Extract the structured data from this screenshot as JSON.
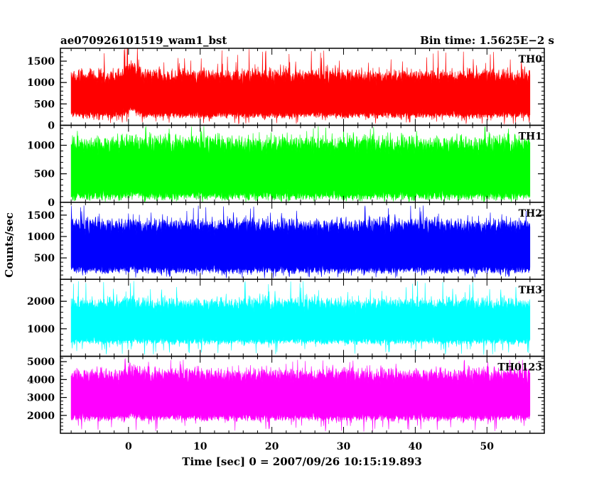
{
  "chart_data": {
    "type": "line",
    "title_left": "ae070926101519_wam1_bst",
    "title_right": "Bin time: 1.5625E−2 s",
    "xlabel": "Time [sec] 0 = 2007/09/26 10:15:19.893",
    "ylabel": "Counts/sec",
    "xlim": [
      -9.5,
      58
    ],
    "x_range": [
      -8,
      56
    ],
    "x_ticks": [
      0,
      10,
      20,
      30,
      40,
      50
    ],
    "x_tick_labels": [
      "0",
      "10",
      "20",
      "30",
      "40",
      "50"
    ],
    "panels": [
      {
        "name": "TH0",
        "color": "#ff0000",
        "ylim": [
          0,
          1800
        ],
        "y_ticks": [
          0,
          500,
          1000,
          1500
        ],
        "y_tick_labels": [
          "0",
          "500",
          "1000",
          "1500"
        ],
        "mean": 680,
        "low_mean": 250,
        "high_mean": 1150,
        "spike_max": 1780,
        "burst": {
          "start": -1,
          "end": 2,
          "boost": 250
        }
      },
      {
        "name": "TH1",
        "color": "#00ff00",
        "ylim": [
          0,
          1350
        ],
        "y_ticks": [
          0,
          500,
          1000
        ],
        "y_tick_labels": [
          "0",
          "500",
          "1000"
        ],
        "mean": 560,
        "low_mean": 120,
        "high_mean": 1020,
        "spike_max": 1350,
        "burst": {
          "start": -1,
          "end": 2,
          "boost": 80
        }
      },
      {
        "name": "TH2",
        "color": "#0000ff",
        "ylim": [
          0,
          1800
        ],
        "y_ticks": [
          500,
          1000,
          1500
        ],
        "y_tick_labels": [
          "500",
          "1000",
          "1500"
        ],
        "mean": 720,
        "low_mean": 230,
        "high_mean": 1250,
        "spike_max": 1750,
        "burst": {
          "start": -1,
          "end": 2,
          "boost": 60
        }
      },
      {
        "name": "TH3",
        "color": "#00ffff",
        "ylim": [
          0,
          2800
        ],
        "y_ticks": [
          1000,
          2000
        ],
        "y_tick_labels": [
          "1000",
          "2000"
        ],
        "mean": 1150,
        "low_mean": 560,
        "high_mean": 1900,
        "spike_max": 2780,
        "burst": {
          "start": -1,
          "end": 2,
          "boost": 60
        }
      },
      {
        "name": "TH0123",
        "color": "#ff00ff",
        "ylim": [
          1000,
          5300
        ],
        "y_ticks": [
          2000,
          3000,
          4000,
          5000
        ],
        "y_tick_labels": [
          "2000",
          "3000",
          "4000",
          "5000"
        ],
        "mean": 3000,
        "low_mean": 1900,
        "high_mean": 4250,
        "spike_max": 5150,
        "burst": {
          "start": -1,
          "end": 2,
          "boost": 250
        }
      }
    ],
    "grid": false,
    "legend": "none"
  }
}
